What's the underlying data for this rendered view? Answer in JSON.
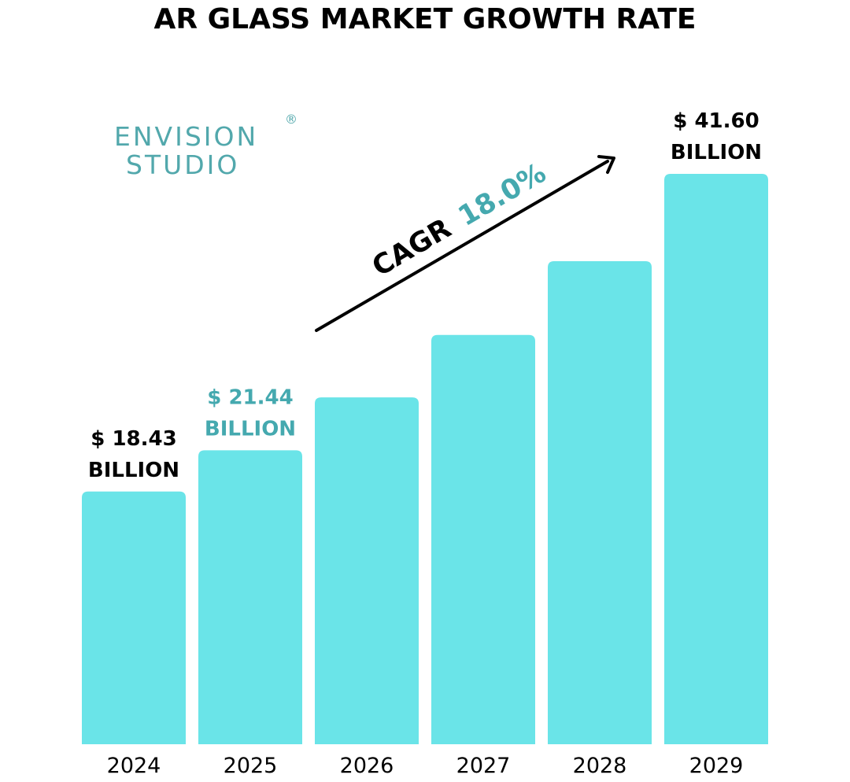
{
  "chart_data": {
    "type": "bar",
    "title": "AR GLASS MARKET GROWTH RATE",
    "categories": [
      "2024",
      "2025",
      "2026",
      "2027",
      "2028",
      "2029"
    ],
    "values": [
      18.43,
      21.44,
      25.3,
      29.85,
      35.23,
      41.6
    ],
    "unit": "BILLION",
    "currency": "$",
    "ylim": [
      0,
      42.5
    ],
    "xlabel": "",
    "ylabel": "",
    "grid": false,
    "value_labels": [
      {
        "category": "2024",
        "amount": "$ 18.43",
        "unit": "BILLION",
        "color": "#000000"
      },
      {
        "category": "2025",
        "amount": "$ 21.44",
        "unit": "BILLION",
        "color": "#45a9af"
      },
      {
        "category": "2029",
        "amount": "$ 41.60",
        "unit": "BILLION",
        "color": "#000000"
      }
    ],
    "annotation": {
      "prefix": "CAGR",
      "value": "18.0%"
    },
    "colors": {
      "bar": "#6ae4e8",
      "accent": "#45a9af",
      "text": "#000000"
    }
  },
  "logo": {
    "line1": "ENVISION",
    "line2": "STUDIO",
    "mark": "®",
    "color": "#52a8ac"
  }
}
